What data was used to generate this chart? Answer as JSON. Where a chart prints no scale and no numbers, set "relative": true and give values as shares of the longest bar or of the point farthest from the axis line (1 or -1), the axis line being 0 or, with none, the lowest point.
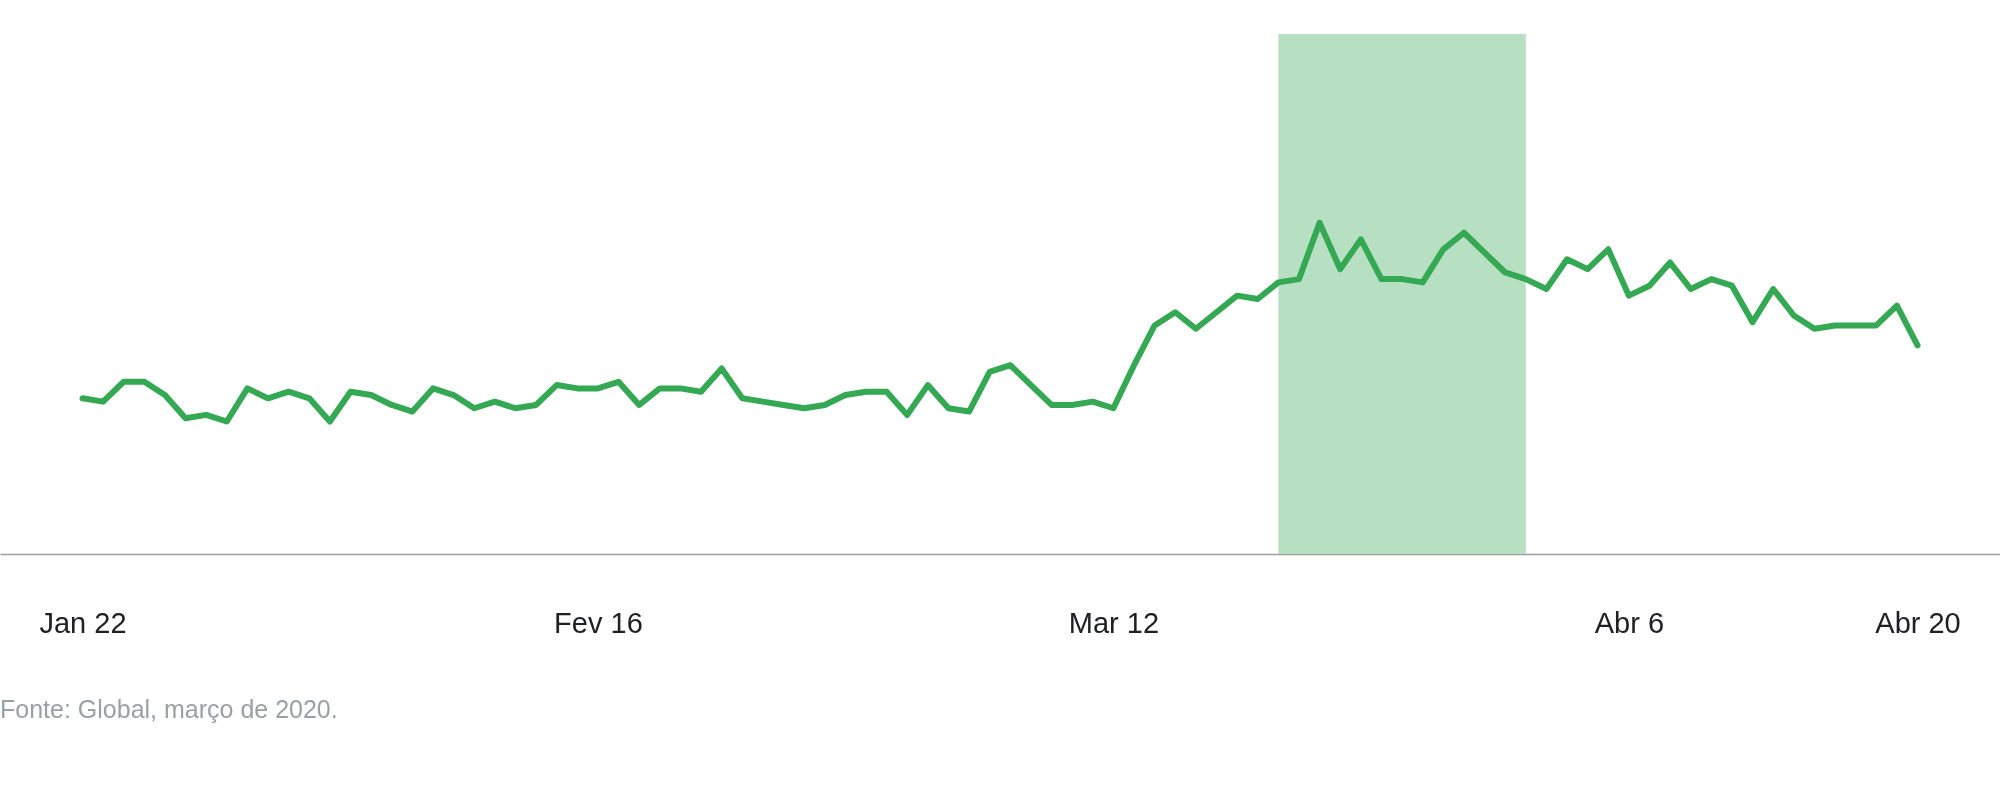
{
  "chart_data": {
    "type": "line",
    "relative": true,
    "x": [
      "--01-22",
      "--01-23",
      "--01-24",
      "--01-25",
      "--01-26",
      "--01-27",
      "--01-28",
      "--01-29",
      "--01-30",
      "--01-31",
      "--02-01",
      "--02-02",
      "--02-03",
      "--02-04",
      "--02-05",
      "--02-06",
      "--02-07",
      "--02-08",
      "--02-09",
      "--02-10",
      "--02-11",
      "--02-12",
      "--02-13",
      "--02-14",
      "--02-15",
      "--02-16",
      "--02-17",
      "--02-18",
      "--02-19",
      "--02-20",
      "--02-21",
      "--02-22",
      "--02-23",
      "--02-24",
      "--02-25",
      "--02-26",
      "--02-27",
      "--02-28",
      "--02-29",
      "--03-01",
      "--03-02",
      "--03-03",
      "--03-04",
      "--03-05",
      "--03-06",
      "--03-07",
      "--03-08",
      "--03-09",
      "--03-10",
      "--03-11",
      "--03-12",
      "--03-13",
      "--03-14",
      "--03-15",
      "--03-16",
      "--03-17",
      "--03-18",
      "--03-19",
      "--03-20",
      "--03-21",
      "--03-22",
      "--03-23",
      "--03-24",
      "--03-25",
      "--03-26",
      "--03-27",
      "--03-28",
      "--03-29",
      "--03-30",
      "--03-31",
      "--04-01",
      "--04-02",
      "--04-03",
      "--04-04",
      "--04-05",
      "--04-06",
      "--04-07",
      "--04-08",
      "--04-09",
      "--04-10",
      "--04-11",
      "--04-12",
      "--04-13",
      "--04-14",
      "--04-15",
      "--04-16",
      "--04-17",
      "--04-18",
      "--04-19",
      "--04-20"
    ],
    "series": [
      {
        "color": "#34a853",
        "values": [
          0.47,
          0.46,
          0.52,
          0.52,
          0.48,
          0.41,
          0.42,
          0.4,
          0.5,
          0.47,
          0.49,
          0.47,
          0.4,
          0.49,
          0.48,
          0.45,
          0.43,
          0.5,
          0.48,
          0.44,
          0.46,
          0.44,
          0.45,
          0.51,
          0.5,
          0.5,
          0.52,
          0.45,
          0.5,
          0.5,
          0.49,
          0.56,
          0.47,
          0.46,
          0.45,
          0.44,
          0.45,
          0.48,
          0.49,
          0.49,
          0.42,
          0.51,
          0.44,
          0.43,
          0.55,
          0.57,
          0.51,
          0.45,
          0.45,
          0.46,
          0.44,
          0.57,
          0.69,
          0.73,
          0.68,
          0.73,
          0.78,
          0.77,
          0.82,
          0.83,
          1,
          0.86,
          0.95,
          0.83,
          0.83,
          0.82,
          0.92,
          0.97,
          0.91,
          0.85,
          0.83,
          0.8,
          0.89,
          0.86,
          0.92,
          0.78,
          0.81,
          0.88,
          0.8,
          0.83,
          0.81,
          0.7,
          0.8,
          0.72,
          0.68,
          0.69,
          0.69,
          0.69,
          0.75,
          0.63
        ]
      }
    ],
    "xlim": [
      "--01-18",
      "--04-24"
    ],
    "xticks": [
      {
        "value": "--01-22",
        "label": "Jan 22"
      },
      {
        "value": "--02-16",
        "label": "Fev 16"
      },
      {
        "value": "--03-12",
        "label": "Mar 12"
      },
      {
        "value": "--04-06",
        "label": "Abr 6"
      },
      {
        "value": "--04-20",
        "label": "Abr 20"
      }
    ],
    "bands": [
      {
        "axis": "x",
        "from": "--03-20",
        "to": "--04-01",
        "color": "#b7dfc2"
      }
    ],
    "line_style": "solid",
    "annotations": [
      "Fonte: Global, março de 2020."
    ]
  }
}
